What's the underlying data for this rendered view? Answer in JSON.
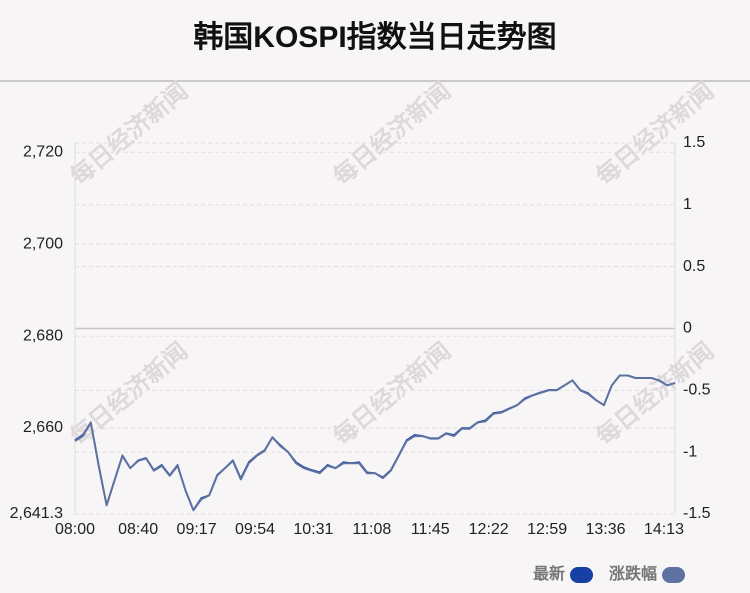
{
  "chart_data": {
    "type": "line",
    "title": "韩国KOSPI指数当日走势图",
    "watermark": "每日经济新闻",
    "x": [
      "08:00",
      "08:05",
      "08:10",
      "08:15",
      "08:20",
      "08:25",
      "08:30",
      "08:35",
      "08:40",
      "08:45",
      "08:50",
      "08:55",
      "09:00",
      "09:05",
      "09:10",
      "09:15",
      "09:20",
      "09:25",
      "09:30",
      "09:35",
      "09:40",
      "09:45",
      "09:50",
      "09:55",
      "10:00",
      "10:05",
      "10:10",
      "10:15",
      "10:20",
      "10:25",
      "10:30",
      "10:35",
      "10:40",
      "10:45",
      "10:50",
      "10:55",
      "11:00",
      "11:05",
      "11:10",
      "11:15",
      "11:20",
      "11:25",
      "11:30",
      "11:35",
      "11:40",
      "11:45",
      "11:50",
      "11:55",
      "12:00",
      "12:05",
      "12:10",
      "12:15",
      "12:20",
      "12:25",
      "12:30",
      "12:35",
      "12:40",
      "12:45",
      "12:50",
      "12:55",
      "13:00",
      "13:05",
      "13:10",
      "13:15",
      "13:20",
      "13:25",
      "13:30",
      "13:35",
      "13:40",
      "13:45",
      "13:50",
      "13:55",
      "14:00",
      "14:05",
      "14:10",
      "14:15",
      "14:20"
    ],
    "xticks": [
      "08:00",
      "08:40",
      "09:17",
      "09:54",
      "10:31",
      "11:08",
      "11:45",
      "12:22",
      "12:59",
      "13:36",
      "14:13"
    ],
    "series": [
      {
        "name": "最新",
        "color": "#173fa5",
        "values": [
          2657.4,
          2658.5,
          2661.3,
          2652,
          2643.3,
          2648.7,
          2654.1,
          2651.3,
          2653,
          2653.5,
          2650.9,
          2652,
          2649.8,
          2652,
          2646.5,
          2642.2,
          2644.8,
          2645.4,
          2649.8,
          2651.3,
          2653,
          2649.1,
          2652.6,
          2654.1,
          2655.2,
          2658,
          2656.3,
          2654.8,
          2652.6,
          2651.5,
          2650.9,
          2650.4,
          2652,
          2651.3,
          2652.6,
          2652.4,
          2652.6,
          2650.4,
          2650.2,
          2649.3,
          2650.9,
          2654.1,
          2657.4,
          2658.5,
          2658.3,
          2657.8,
          2657.8,
          2658.9,
          2658.5,
          2660,
          2660,
          2661.3,
          2661.7,
          2663.3,
          2663.5,
          2664.3,
          2665,
          2666.5,
          2667.2,
          2667.8,
          2668.3,
          2668.3,
          2669.3,
          2670.4,
          2668.3,
          2667.6,
          2666.1,
          2665,
          2669.3,
          2671.5,
          2671.5,
          2670.9,
          2670.9,
          2670.9,
          2670.4,
          2669.3,
          2669.8
        ]
      },
      {
        "name": "涨跌幅",
        "color": "#5d72a0",
        "axis": "y2",
        "values": [
          -0.91,
          -0.87,
          -0.76,
          -1.11,
          -1.43,
          -1.23,
          -1.03,
          -1.13,
          -1.07,
          -1.05,
          -1.15,
          -1.11,
          -1.19,
          -1.11,
          -1.31,
          -1.47,
          -1.38,
          -1.35,
          -1.19,
          -1.13,
          -1.07,
          -1.22,
          -1.09,
          -1.03,
          -0.99,
          -0.88,
          -0.95,
          -1.0,
          -1.09,
          -1.13,
          -1.15,
          -1.17,
          -1.11,
          -1.13,
          -1.09,
          -1.09,
          -1.09,
          -1.17,
          -1.17,
          -1.21,
          -1.15,
          -1.03,
          -0.91,
          -0.87,
          -0.87,
          -0.89,
          -0.89,
          -0.85,
          -0.87,
          -0.81,
          -0.81,
          -0.76,
          -0.75,
          -0.69,
          -0.68,
          -0.65,
          -0.62,
          -0.57,
          -0.54,
          -0.52,
          -0.5,
          -0.5,
          -0.46,
          -0.42,
          -0.5,
          -0.53,
          -0.58,
          -0.62,
          -0.46,
          -0.38,
          -0.38,
          -0.4,
          -0.4,
          -0.4,
          -0.42,
          -0.46,
          -0.44
        ]
      }
    ],
    "ylim": [
      2641.3,
      2722
    ],
    "yticks": [
      {
        "value": 2641.3,
        "label": "2,641.3"
      },
      {
        "value": 2660,
        "label": "2,660"
      },
      {
        "value": 2680,
        "label": "2,680"
      },
      {
        "value": 2700,
        "label": "2,700"
      },
      {
        "value": 2720,
        "label": "2,720"
      }
    ],
    "y2lim": [
      -1.5,
      1.5
    ],
    "y2ticks": [
      -1.5,
      -1,
      -0.5,
      0,
      0.5,
      1,
      1.5
    ],
    "grid": true
  }
}
